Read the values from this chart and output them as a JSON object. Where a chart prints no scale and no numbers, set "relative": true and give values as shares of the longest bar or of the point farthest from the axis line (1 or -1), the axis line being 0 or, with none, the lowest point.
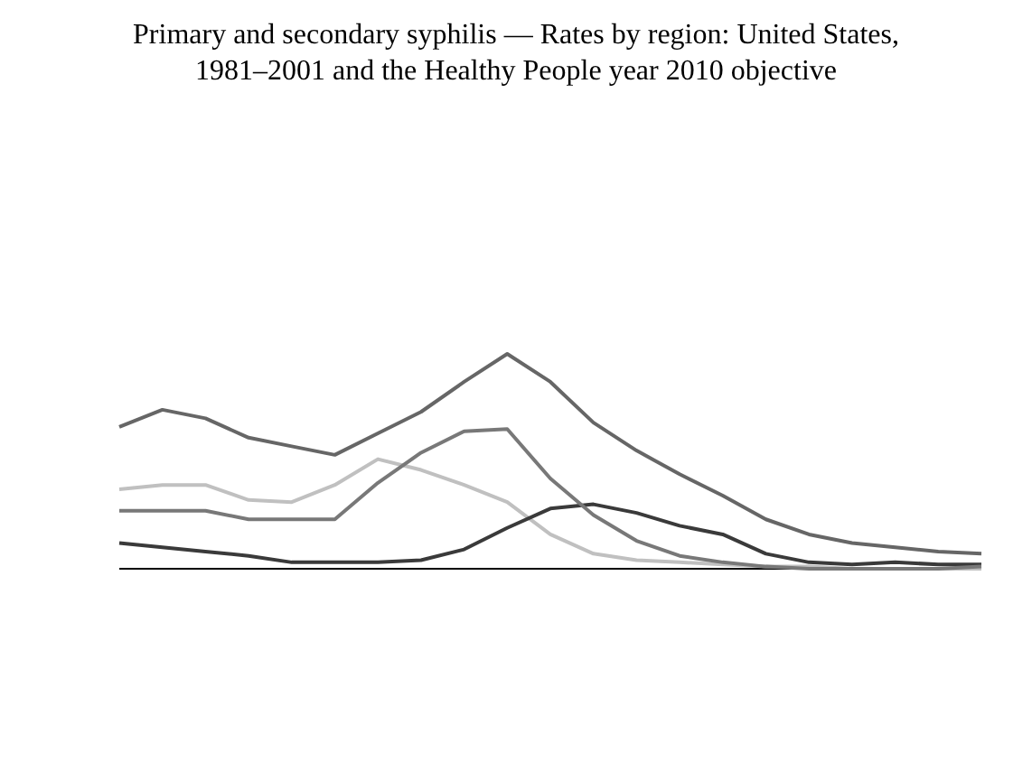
{
  "chart_data": {
    "type": "line",
    "title": "Primary and secondary syphilis — Rates by region: United States, 1981–2001 and the Healthy People year 2010 objective",
    "relative": true,
    "categories": [
      null,
      null,
      null,
      null,
      null,
      null,
      null,
      null,
      null,
      null,
      null,
      null,
      null,
      null,
      null,
      null,
      null,
      null,
      null,
      null,
      null
    ],
    "series": [
      {
        "color": "#c0c0c0",
        "values": [
          0.37,
          0.39,
          0.39,
          0.32,
          0.31,
          0.39,
          0.51,
          0.46,
          0.39,
          0.31,
          0.16,
          0.07,
          0.04,
          0.03,
          0.02,
          0.01,
          0.01,
          0,
          0,
          0,
          0
        ]
      },
      {
        "color": "#3a3a3a",
        "values": [
          0.12,
          0.1,
          0.08,
          0.06,
          0.03,
          0.03,
          0.03,
          0.04,
          0.09,
          0.19,
          0.28,
          0.3,
          0.26,
          0.2,
          0.16,
          0.07,
          0.03,
          0.02,
          0.03,
          0.02,
          0.02
        ]
      },
      {
        "color": "#666666",
        "values": [
          0.66,
          0.74,
          0.7,
          0.61,
          0.57,
          0.53,
          0.63,
          0.73,
          0.87,
          1,
          0.87,
          0.68,
          0.55,
          0.44,
          0.34,
          0.23,
          0.16,
          0.12,
          0.1,
          0.08,
          0.07
        ]
      },
      {
        "color": "#787878",
        "values": [
          0.27,
          0.27,
          0.27,
          0.23,
          0.23,
          0.23,
          0.4,
          0.54,
          0.64,
          0.65,
          0.42,
          0.25,
          0.13,
          0.06,
          0.03,
          0.01,
          0,
          0,
          0,
          0,
          0.01
        ]
      }
    ]
  }
}
